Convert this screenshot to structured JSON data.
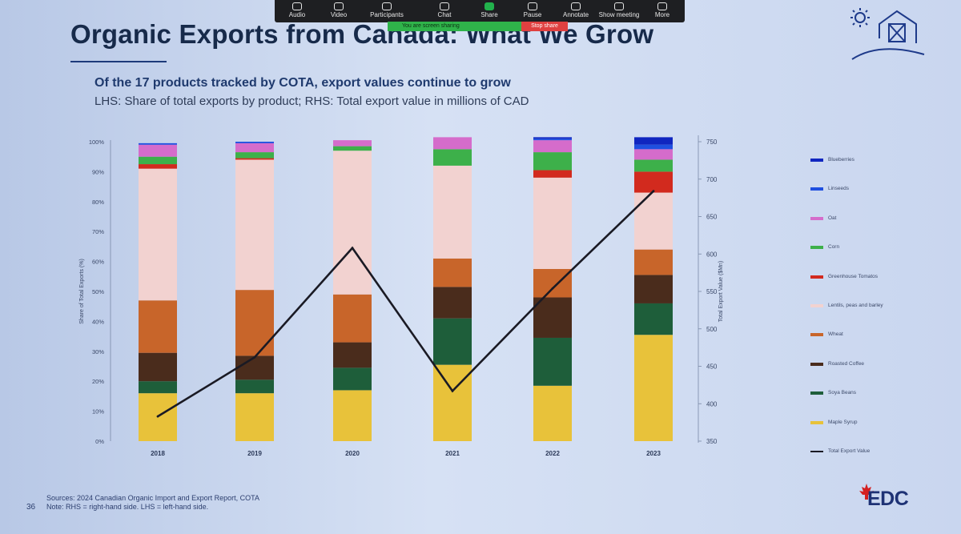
{
  "slide": {
    "title": "Organic Exports from Canada: What We Grow",
    "subtitle": "Of the 17 products tracked by COTA, export values continue to grow",
    "description": "LHS: Share of total exports by product; RHS: Total export value in millions of CAD",
    "sources": "Sources: 2024 Canadian Organic Import and Export Report, COTA",
    "note": "Note: RHS = right-hand side. LHS = left-hand side.",
    "page_number": "36",
    "brand": "EDC"
  },
  "zoom": {
    "audio": "Audio",
    "video": "Video",
    "participants": "Participants",
    "chat": "Chat",
    "share": "Share",
    "pause": "Pause",
    "annotate": "Annotate",
    "show_meeting": "Show meeting",
    "more": "More",
    "sharing_banner": "You are screen sharing",
    "stop_share": "Stop share"
  },
  "chart_data": {
    "type": "bar",
    "stacked": true,
    "categories": [
      "2018",
      "2019",
      "2020",
      "2021",
      "2022",
      "2023"
    ],
    "ylabel": "Share of Total Exports (%)",
    "y2label": "Total Export Value ($Mn)",
    "ylim": [
      0,
      100
    ],
    "yticks": [
      "0%",
      "10%",
      "20%",
      "30%",
      "40%",
      "50%",
      "60%",
      "70%",
      "80%",
      "90%",
      "100%"
    ],
    "y2lim": [
      350,
      750
    ],
    "y2ticks": [
      "350",
      "400",
      "450",
      "500",
      "550",
      "600",
      "650",
      "700",
      "750"
    ],
    "series": [
      {
        "name": "Maple Syrup",
        "color": "#e8c23a",
        "values": [
          16,
          16,
          17,
          25.5,
          18.5,
          35.5
        ]
      },
      {
        "name": "Soya Beans",
        "color": "#1e5e3a",
        "values": [
          4,
          4.5,
          7.5,
          15.5,
          16,
          10.5
        ]
      },
      {
        "name": "Roasted Coffee",
        "color": "#4a2c1c",
        "values": [
          9.5,
          8,
          8.5,
          10.5,
          13.5,
          9.5
        ]
      },
      {
        "name": "Wheat",
        "color": "#c8652a",
        "values": [
          17.5,
          22,
          16,
          9.5,
          9.5,
          8.5
        ]
      },
      {
        "name": "Lentils, peas and barley",
        "color": "#f2d2d0",
        "values": [
          44,
          43.5,
          48,
          31,
          30.5,
          19
        ]
      },
      {
        "name": "Greenhouse Tomatos",
        "color": "#d22a1e",
        "values": [
          1.5,
          0.5,
          0,
          0,
          2.5,
          7
        ]
      },
      {
        "name": "Corn",
        "color": "#3db04a",
        "values": [
          2.5,
          2,
          1.5,
          5.5,
          6,
          4
        ]
      },
      {
        "name": "Oat",
        "color": "#d56ccb",
        "values": [
          4,
          3,
          2,
          4,
          4,
          3.5
        ]
      },
      {
        "name": "Linseeds",
        "color": "#1f4fe0",
        "values": [
          0.5,
          0.5,
          0,
          0,
          0.5,
          1.5
        ]
      },
      {
        "name": "Blueberries",
        "color": "#1026c0",
        "values": [
          0,
          0,
          0,
          0,
          0.5,
          2.5
        ]
      }
    ],
    "line": {
      "name": "Total Export Value",
      "color": "#1a1a24",
      "axis": "right",
      "values": [
        383,
        462,
        608,
        417,
        554,
        684
      ]
    },
    "legend_position": "right",
    "grid": false
  }
}
